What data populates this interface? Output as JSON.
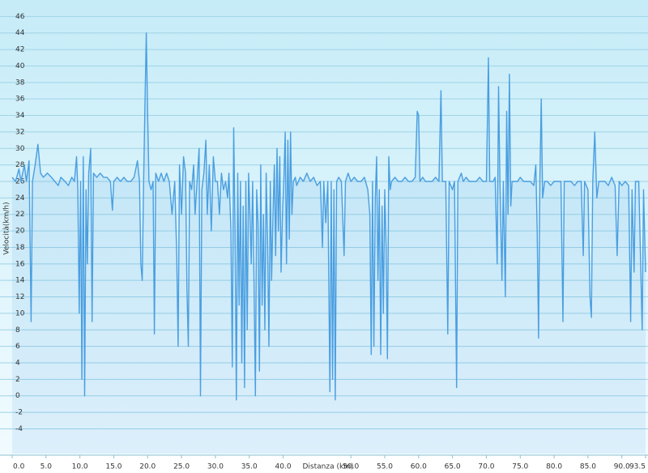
{
  "chart_data": {
    "type": "line",
    "xlabel": "Distanza  (km)",
    "ylabel": "Velocità(km/h)",
    "xlim": [
      0,
      93.5
    ],
    "ylim": [
      -7,
      48
    ],
    "xticks": [
      {
        "value": 0,
        "label": "0.0"
      },
      {
        "value": 5,
        "label": "5.0"
      },
      {
        "value": 10,
        "label": "10.0"
      },
      {
        "value": 15,
        "label": "15.0"
      },
      {
        "value": 20,
        "label": "20.0"
      },
      {
        "value": 25,
        "label": "25.0"
      },
      {
        "value": 30,
        "label": "30.0"
      },
      {
        "value": 35,
        "label": "35.0"
      },
      {
        "value": 40,
        "label": "40.0"
      },
      {
        "value": 50,
        "label": "50.0"
      },
      {
        "value": 55,
        "label": "55.0"
      },
      {
        "value": 60,
        "label": "60.0"
      },
      {
        "value": 65,
        "label": "65.0"
      },
      {
        "value": 70,
        "label": "70.0"
      },
      {
        "value": 75,
        "label": "75.0"
      },
      {
        "value": 80,
        "label": "80.0"
      },
      {
        "value": 85,
        "label": "85.0"
      },
      {
        "value": 90,
        "label": "90.0"
      },
      {
        "value": 93.5,
        "label": "93.5"
      }
    ],
    "yticks": [
      -4,
      -2,
      0,
      2,
      4,
      6,
      8,
      10,
      12,
      14,
      16,
      18,
      20,
      22,
      24,
      26,
      28,
      30,
      32,
      34,
      36,
      38,
      40,
      42,
      44,
      46
    ],
    "grid": true,
    "color": "#4a9ee0",
    "x": [
      0,
      0.5,
      1,
      1.3,
      1.8,
      2.1,
      2.5,
      2.8,
      3.0,
      3.4,
      3.8,
      4.2,
      4.6,
      5.2,
      5.8,
      6.3,
      6.8,
      7.2,
      7.8,
      8.3,
      8.8,
      9.2,
      9.5,
      9.7,
      9.9,
      10.1,
      10.3,
      10.5,
      10.7,
      10.9,
      11.1,
      11.3,
      11.6,
      11.8,
      12.0,
      12.5,
      13,
      13.5,
      14,
      14.5,
      14.8,
      15,
      15.5,
      16,
      16.5,
      17,
      17.5,
      18,
      18.5,
      18.8,
      19,
      19.2,
      19.4,
      19.6,
      19.8,
      20,
      20.2,
      20.5,
      20.8,
      21,
      21.2,
      21.6,
      22,
      22.4,
      22.8,
      23.2,
      23.6,
      24,
      24.3,
      24.5,
      24.7,
      25,
      25.3,
      25.6,
      25.8,
      26,
      26.2,
      26.5,
      26.8,
      27,
      27.3,
      27.6,
      27.8,
      28.0,
      28.3,
      28.6,
      28.8,
      29.1,
      29.4,
      29.7,
      30,
      30.3,
      30.6,
      30.9,
      31.2,
      31.5,
      31.8,
      32,
      32.3,
      32.5,
      32.7,
      32.9,
      33.1,
      33.3,
      33.5,
      33.7,
      33.9,
      34.1,
      34.3,
      34.5,
      34.7,
      34.9,
      35.1,
      35.3,
      35.5,
      35.7,
      35.9,
      36.1,
      36.3,
      36.5,
      36.7,
      36.9,
      37.1,
      37.3,
      37.5,
      37.7,
      37.9,
      38.1,
      38.3,
      38.5,
      38.7,
      38.9,
      39.1,
      39.3,
      39.5,
      39.7,
      39.9,
      40.1,
      40.3,
      40.5,
      40.7,
      40.9,
      41.1,
      41.3,
      41.5,
      41.8,
      42,
      42.5,
      43,
      43.5,
      44,
      44.5,
      45,
      45.5,
      45.8,
      46,
      46.3,
      46.6,
      46.9,
      47.1,
      47.3,
      47.5,
      47.7,
      47.9,
      48.2,
      48.6,
      49,
      49.2,
      49.6,
      50,
      50.5,
      51,
      51.5,
      52,
      52.5,
      52.8,
      53,
      53.2,
      53.4,
      53.6,
      53.8,
      54,
      54.2,
      54.4,
      54.6,
      54.8,
      55,
      55.2,
      55.4,
      55.6,
      55.8,
      56,
      56.5,
      57,
      57.5,
      58,
      58.5,
      59,
      59.5,
      59.8,
      60,
      60.2,
      60.6,
      61,
      61.5,
      62,
      62.5,
      63,
      63.3,
      63.5,
      64,
      64.3,
      64.5,
      65,
      65.3,
      65.6,
      65.8,
      66.3,
      66.6,
      67,
      67.5,
      68,
      68.5,
      69,
      69.5,
      70,
      70.3,
      70.5,
      71,
      71.3,
      71.6,
      71.8,
      72,
      72.3,
      72.5,
      72.8,
      73,
      73.2,
      73.4,
      73.6,
      73.8,
      74.2,
      74.6,
      75,
      75.5,
      76,
      76.5,
      77,
      77.3,
      77.5,
      77.7,
      77.9,
      78.1,
      78.3,
      78.6,
      79,
      79.5,
      80,
      80.5,
      81,
      81.3,
      81.5,
      82,
      82.5,
      83,
      83.5,
      84,
      84.3,
      84.5,
      85,
      85.3,
      85.5,
      85.7,
      86,
      86.3,
      86.6,
      87,
      87.5,
      88,
      88.5,
      89,
      89.3,
      89.6,
      90,
      90.5,
      91,
      91.3,
      91.5,
      91.8,
      92,
      92.5,
      93,
      93.2,
      93.5
    ],
    "values": [
      26.5,
      26,
      27.5,
      26,
      28,
      26,
      28.5,
      9,
      26,
      28,
      30.5,
      27,
      26.5,
      27,
      26.5,
      26,
      25.5,
      26.5,
      26,
      25.5,
      26.5,
      26,
      29,
      25,
      10,
      26,
      2,
      29,
      0,
      25,
      16,
      27,
      30,
      9,
      27,
      26.5,
      27,
      26.5,
      26.5,
      26,
      22.5,
      26,
      26.5,
      26,
      26.5,
      26,
      26,
      26.5,
      28.5,
      26,
      16,
      14,
      26,
      35,
      44,
      34,
      26,
      25,
      26,
      7.5,
      27,
      26,
      27,
      26,
      27,
      26,
      22,
      26,
      17,
      6,
      28,
      22,
      29,
      27,
      13,
      6,
      26,
      25,
      28,
      22,
      26,
      30,
      0,
      25,
      27,
      31,
      22,
      28,
      20,
      29,
      26,
      26,
      22,
      27,
      25,
      26,
      24,
      27,
      20,
      3.5,
      32.5,
      20,
      -0.5,
      27,
      11,
      26,
      4,
      23,
      1,
      26,
      8,
      27,
      22,
      16,
      26,
      14,
      0,
      25,
      21,
      3,
      28,
      11,
      22,
      8,
      27,
      19,
      6,
      26,
      14,
      22,
      28,
      17,
      30,
      20,
      29,
      15,
      22,
      26,
      32,
      16,
      31,
      19,
      32,
      22,
      26,
      26.5,
      25.5,
      26.5,
      26,
      27,
      26,
      26.5,
      25.5,
      26,
      18,
      26,
      21,
      26,
      0.5,
      26,
      2,
      25,
      -0.5,
      26,
      26.5,
      26,
      17,
      26,
      27,
      26,
      26.5,
      26,
      26,
      26.5,
      25,
      22,
      5,
      26,
      6,
      24,
      29,
      14,
      25,
      5,
      23,
      10,
      25,
      18,
      4.5,
      29,
      25,
      26,
      26.5,
      26,
      26,
      26.5,
      26,
      26,
      26.5,
      34.5,
      34,
      26,
      26.5,
      26,
      26,
      26,
      26.5,
      26,
      37,
      26,
      26,
      7.5,
      26,
      25,
      26,
      1,
      26,
      27,
      26,
      26.5,
      26,
      26,
      26,
      26.5,
      26,
      26,
      41,
      26,
      26,
      26.5,
      16,
      37.5,
      26,
      14,
      26,
      12,
      34.5,
      22,
      39,
      23,
      26,
      26,
      26,
      26.5,
      26,
      26,
      26,
      25.5,
      28,
      20,
      7,
      26,
      36,
      24,
      26,
      26,
      25.5,
      26,
      26,
      26,
      9,
      26,
      26,
      26,
      25.5,
      26,
      26,
      17,
      26,
      25,
      12,
      9.5,
      26,
      32,
      24,
      26,
      26,
      26,
      25.5,
      26.5,
      25.5,
      17,
      26,
      25.5,
      26,
      25.5,
      9,
      25,
      15,
      26,
      26,
      8,
      25,
      15
    ]
  }
}
